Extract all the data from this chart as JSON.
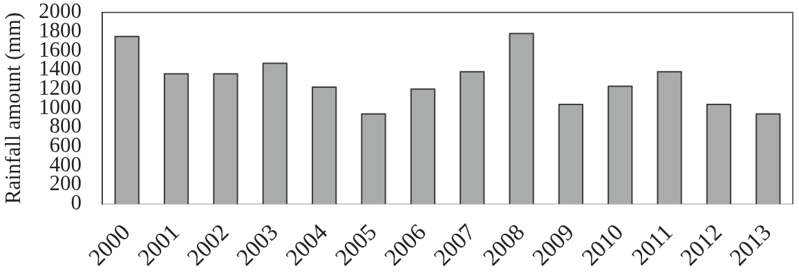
{
  "chart_data": {
    "type": "bar",
    "ylabel": "Rainfall amount (mm)",
    "categories": [
      "2000",
      "2001",
      "2002",
      "2003",
      "2004",
      "2005",
      "2006",
      "2007",
      "2008",
      "2009",
      "2010",
      "2011",
      "2012",
      "2013"
    ],
    "values": [
      1750,
      1360,
      1360,
      1470,
      1220,
      940,
      1200,
      1380,
      1780,
      1040,
      1230,
      1380,
      1040,
      940
    ],
    "color": "#a9acaa",
    "ylim": [
      0,
      2000
    ],
    "yticks": [
      0,
      200,
      400,
      600,
      800,
      1000,
      1200,
      1400,
      1600,
      1800,
      2000
    ]
  }
}
